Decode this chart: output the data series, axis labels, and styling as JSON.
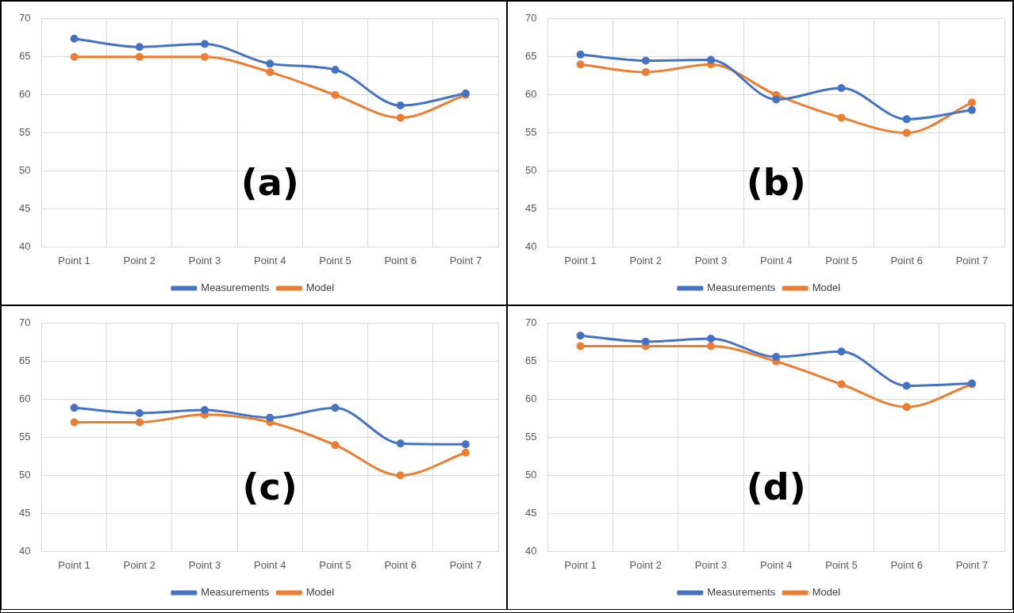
{
  "chart_data": [
    {
      "type": "line",
      "categories": [
        "Point 1",
        "Point 2",
        "Point 3",
        "Point 4",
        "Point 5",
        "Point 6",
        "Point 7"
      ],
      "series": [
        {
          "name": "Measurements",
          "color": "#4472c4",
          "values": [
            67.4,
            66.3,
            66.7,
            64.1,
            63.3,
            58.6,
            60.2
          ]
        },
        {
          "name": "Model",
          "color": "#ed7d31",
          "values": [
            65,
            65,
            65,
            63,
            60,
            57,
            60
          ]
        }
      ],
      "ylim": [
        40,
        70
      ],
      "yticks": [
        40,
        45,
        50,
        55,
        60,
        65,
        70
      ],
      "grid": true,
      "legend": "bottom",
      "marker": "circle",
      "annotations": [
        "(a)"
      ]
    },
    {
      "type": "line",
      "categories": [
        "Point 1",
        "Point 2",
        "Point 3",
        "Point 4",
        "Point 5",
        "Point 6",
        "Point 7"
      ],
      "series": [
        {
          "name": "Measurements",
          "color": "#4472c4",
          "values": [
            65.3,
            64.5,
            64.6,
            59.4,
            60.9,
            56.8,
            58
          ]
        },
        {
          "name": "Model",
          "color": "#ed7d31",
          "values": [
            64,
            63,
            64,
            60,
            57,
            55,
            59
          ]
        }
      ],
      "ylim": [
        40,
        70
      ],
      "yticks": [
        40,
        45,
        50,
        55,
        60,
        65,
        70
      ],
      "grid": true,
      "legend": "bottom",
      "marker": "circle",
      "annotations": [
        "(b)"
      ]
    },
    {
      "type": "line",
      "categories": [
        "Point 1",
        "Point 2",
        "Point 3",
        "Point 4",
        "Point 5",
        "Point 6",
        "Point 7"
      ],
      "series": [
        {
          "name": "Measurements",
          "color": "#4472c4",
          "values": [
            58.9,
            58.2,
            58.6,
            57.6,
            58.9,
            54.2,
            54.1
          ]
        },
        {
          "name": "Model",
          "color": "#ed7d31",
          "values": [
            57,
            57,
            58,
            57,
            54,
            50,
            53
          ]
        }
      ],
      "ylim": [
        40,
        70
      ],
      "yticks": [
        40,
        45,
        50,
        55,
        60,
        65,
        70
      ],
      "grid": true,
      "legend": "bottom",
      "marker": "circle",
      "annotations": [
        "(c)"
      ]
    },
    {
      "type": "line",
      "categories": [
        "Point 1",
        "Point 2",
        "Point 3",
        "Point 4",
        "Point 5",
        "Point 6",
        "Point 7"
      ],
      "series": [
        {
          "name": "Measurements",
          "color": "#4472c4",
          "values": [
            68.4,
            67.6,
            68,
            65.6,
            66.3,
            61.8,
            62.1
          ]
        },
        {
          "name": "Model",
          "color": "#ed7d31",
          "values": [
            67,
            67,
            67,
            65,
            62,
            59,
            62
          ]
        }
      ],
      "ylim": [
        40,
        70
      ],
      "yticks": [
        40,
        45,
        50,
        55,
        60,
        65,
        70
      ],
      "grid": true,
      "legend": "bottom",
      "marker": "circle",
      "annotations": [
        "(d)"
      ]
    }
  ]
}
